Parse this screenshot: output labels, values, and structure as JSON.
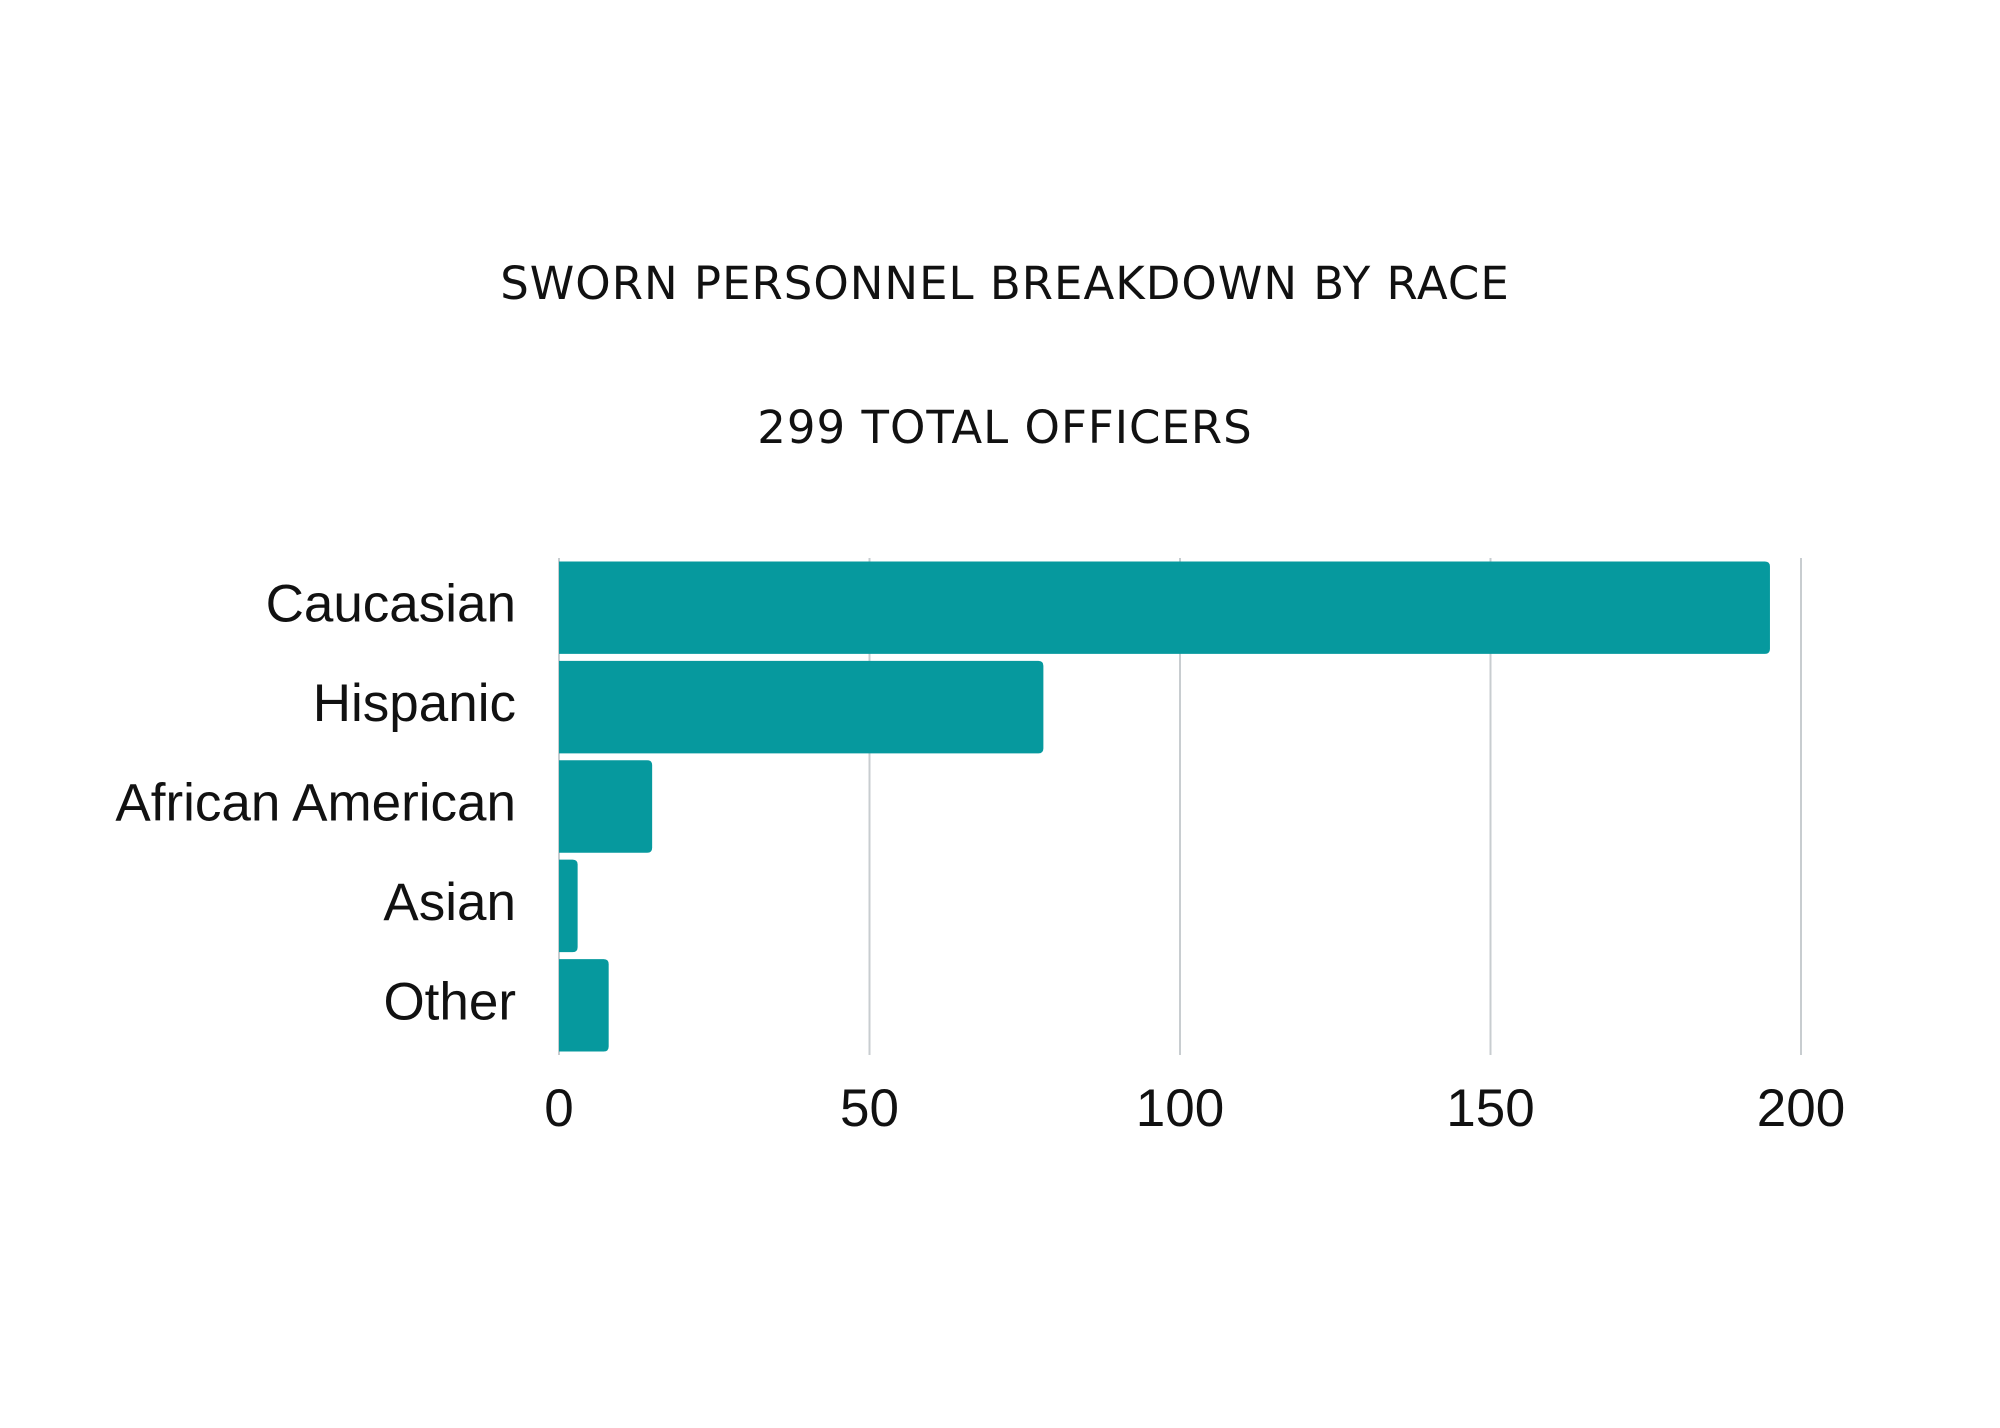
{
  "chart_data": {
    "type": "bar",
    "orientation": "horizontal",
    "title": "SWORN PERSONNEL BREAKDOWN BY RACE",
    "subtitle": "299 TOTAL OFFICERS",
    "categories": [
      "Caucasian",
      "Hispanic",
      "African American",
      "Asian",
      "Other"
    ],
    "values": [
      195,
      78,
      15,
      3,
      8
    ],
    "color": "#06999e",
    "xlim": [
      0,
      200
    ],
    "xticks": [
      0,
      50,
      100,
      150,
      200
    ],
    "grid": true
  }
}
